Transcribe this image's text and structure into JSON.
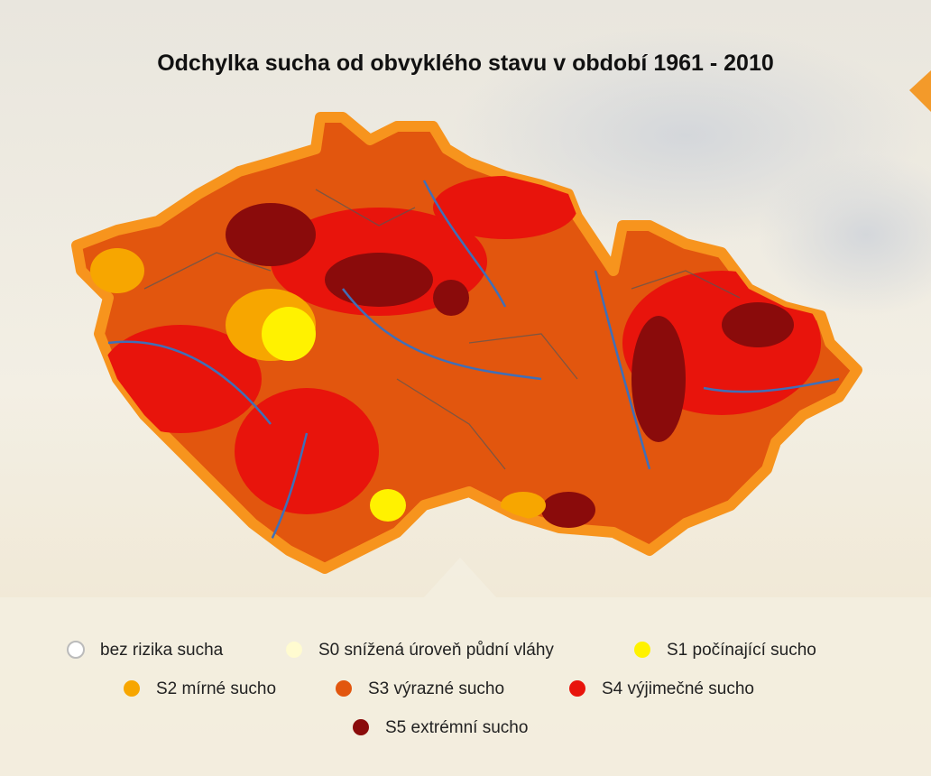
{
  "title": "Odchylka sucha od obvyklého stavu v období 1961 - 2010",
  "legend": [
    {
      "label": "bez rizika sucha",
      "color": "#ffffff"
    },
    {
      "label": "S0 snížená úroveň půdní vláhy",
      "color": "#fffbd0"
    },
    {
      "label": "S1 počínající sucho",
      "color": "#fff200"
    },
    {
      "label": "S2 mírné sucho",
      "color": "#f7a600"
    },
    {
      "label": "S3 výrazné sucho",
      "color": "#e2560e"
    },
    {
      "label": "S4 výjimečné sucho",
      "color": "#e8140c"
    },
    {
      "label": "S5 extrémní sucho",
      "color": "#8a0b0b"
    }
  ]
}
